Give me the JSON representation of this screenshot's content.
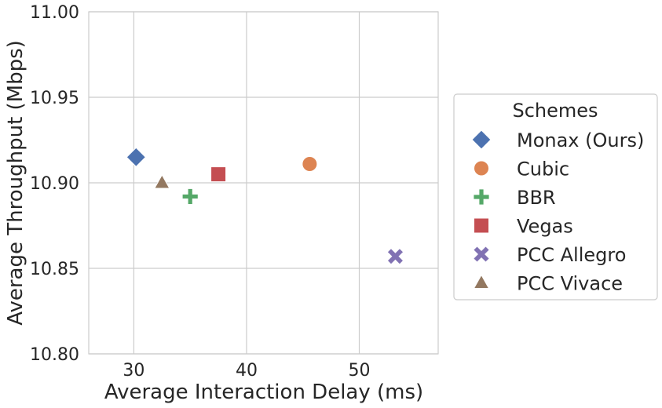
{
  "chart_data": {
    "type": "scatter",
    "xlabel": "Average Interaction Delay (ms)",
    "ylabel": "Average Throughput (Mbps)",
    "xlim": [
      26,
      57
    ],
    "ylim": [
      10.8,
      11.0
    ],
    "xticks": [
      30,
      40,
      50
    ],
    "xtick_labels": [
      "30",
      "40",
      "50"
    ],
    "yticks": [
      10.8,
      10.85,
      10.9,
      10.95,
      11.0
    ],
    "ytick_labels": [
      "10.80",
      "10.85",
      "10.90",
      "10.95",
      "11.00"
    ],
    "grid": true,
    "legend": {
      "title": "Schemes",
      "placement": "right-outside"
    },
    "series": [
      {
        "name": "Monax (Ours)",
        "marker": "diamond",
        "color": "#4c72b0",
        "x": 30.2,
        "y": 10.915
      },
      {
        "name": "Cubic",
        "marker": "circle",
        "color": "#dd8452",
        "x": 45.6,
        "y": 10.911
      },
      {
        "name": "BBR",
        "marker": "plus",
        "color": "#55a868",
        "x": 35.0,
        "y": 10.892
      },
      {
        "name": "Vegas",
        "marker": "square",
        "color": "#c44e52",
        "x": 37.5,
        "y": 10.905
      },
      {
        "name": "PCC Allegro",
        "marker": "x",
        "color": "#8172b3",
        "x": 53.2,
        "y": 10.857
      },
      {
        "name": "PCC Vivace",
        "marker": "triangle",
        "color": "#937860",
        "x": 32.5,
        "y": 10.9
      }
    ]
  }
}
